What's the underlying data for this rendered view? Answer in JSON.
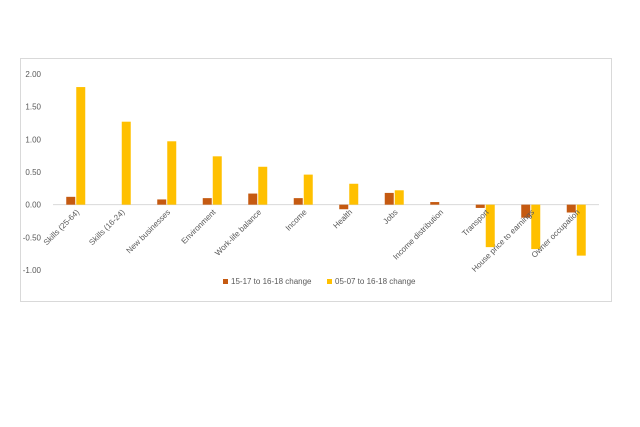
{
  "chart_data": {
    "type": "bar",
    "categories": [
      "Skills (25-64)",
      "Skills (16-24)",
      "New businesses",
      "Environment",
      "Work-life balance",
      "Income",
      "Health",
      "Jobs",
      "Income distribution",
      "Transport",
      "House price to earnings",
      "Owner occupation"
    ],
    "series": [
      {
        "name": "15-17 to 16-18 change",
        "color": "#c55a11",
        "values": [
          0.12,
          0.0,
          0.08,
          0.1,
          0.17,
          0.1,
          -0.07,
          0.18,
          0.04,
          -0.05,
          -0.2,
          -0.12
        ]
      },
      {
        "name": "05-07 to 16-18 change",
        "color": "#ffc000",
        "values": [
          1.8,
          1.27,
          0.97,
          0.74,
          0.58,
          0.46,
          0.32,
          0.22,
          0.0,
          -0.65,
          -0.68,
          -0.78
        ]
      }
    ],
    "yticks": [
      "2.00",
      "1.50",
      "1.00",
      "0.50",
      "0.00",
      "-0.50",
      "-1.00"
    ],
    "ylim": [
      -1.0,
      2.0
    ],
    "legend_position": "bottom",
    "grid": false
  }
}
